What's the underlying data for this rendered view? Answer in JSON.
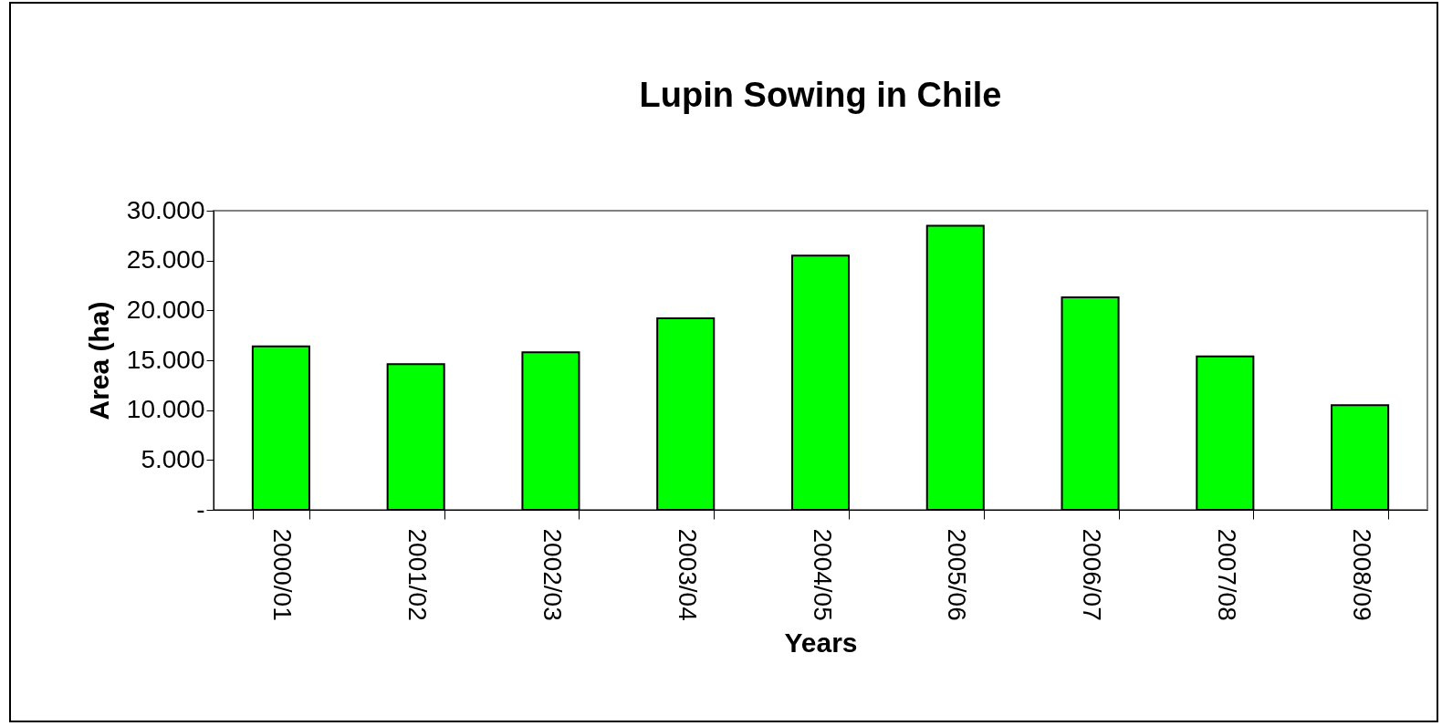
{
  "chart_data": {
    "type": "bar",
    "title": "Lupin Sowing in Chile",
    "xlabel": "Years",
    "ylabel": "Area (ha)",
    "categories": [
      "2000/01",
      "2001/02",
      "2002/03",
      "2003/04",
      "2004/05",
      "2005/06",
      "2006/07",
      "2007/08",
      "2008/09"
    ],
    "values": [
      16400,
      14600,
      15800,
      19200,
      25500,
      28500,
      21300,
      15400,
      10500
    ],
    "color": "#00ff00",
    "ylim": [
      0,
      30000
    ],
    "yticks": [
      {
        "value": 0,
        "label": "-"
      },
      {
        "value": 5000,
        "label": "5.000"
      },
      {
        "value": 10000,
        "label": "10.000"
      },
      {
        "value": 15000,
        "label": "15.000"
      },
      {
        "value": 20000,
        "label": "20.000"
      },
      {
        "value": 25000,
        "label": "25.000"
      },
      {
        "value": 30000,
        "label": "30.000"
      }
    ],
    "grid": false
  }
}
